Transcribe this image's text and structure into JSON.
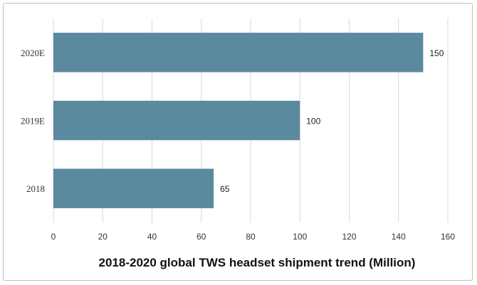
{
  "chart_data": {
    "type": "bar",
    "orientation": "horizontal",
    "title": "2018-2020 global TWS headset shipment trend (Million)",
    "categories": [
      "2020E",
      "2019E",
      "2018"
    ],
    "values": [
      150,
      100,
      65
    ],
    "data_labels": [
      "150",
      "100",
      "65"
    ],
    "xlim": [
      0,
      160
    ],
    "x_ticks": [
      0,
      20,
      40,
      60,
      80,
      100,
      120,
      140,
      160
    ],
    "grid": true,
    "colors": {
      "bar": "#5b8a9f",
      "grid": "#d9d9d9"
    }
  }
}
